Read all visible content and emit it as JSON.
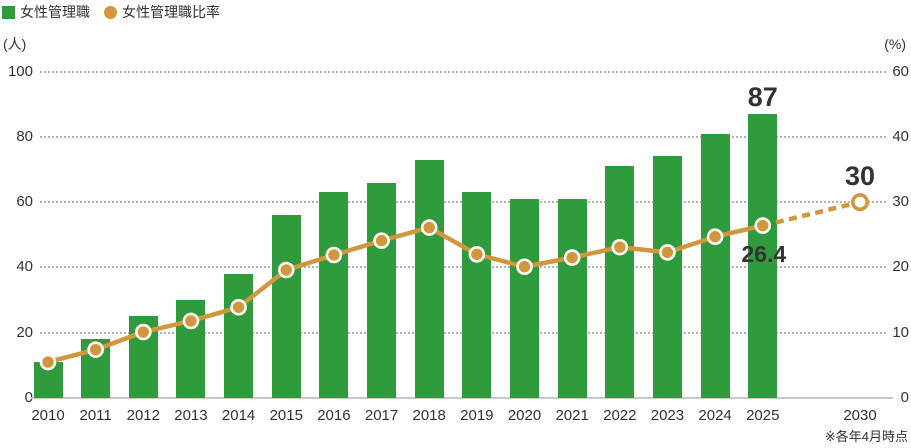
{
  "colors": {
    "bar": "#2f9b3d",
    "line": "#d2973c",
    "grid": "#b3b3b3",
    "axis_line": "#c9c9c9",
    "text": "#333333"
  },
  "legend": {
    "bar_label": "女性管理職",
    "line_label": "女性管理職比率"
  },
  "left_axis": {
    "unit": "(人)",
    "ticks": [
      0,
      20,
      40,
      60,
      80,
      100
    ]
  },
  "right_axis": {
    "unit": "(%)",
    "ticks": [
      0,
      10,
      20,
      30,
      40,
      60
    ]
  },
  "note": "※各年4月時点",
  "chart_data": {
    "type": "combo",
    "categories": [
      "2010",
      "2011",
      "2012",
      "2013",
      "2014",
      "2015",
      "2016",
      "2017",
      "2018",
      "2019",
      "2020",
      "2021",
      "2022",
      "2023",
      "2024",
      "2025",
      "2030"
    ],
    "series": [
      {
        "name": "女性管理職",
        "type": "bar",
        "axis": "left",
        "values": [
          11,
          18,
          25,
          30,
          38,
          56,
          63,
          66,
          73,
          63,
          61,
          61,
          71,
          74,
          81,
          87,
          null
        ]
      },
      {
        "name": "女性管理職比率",
        "type": "line",
        "axis": "right",
        "values": [
          5.5,
          7.4,
          10.1,
          11.8,
          13.9,
          19.6,
          21.9,
          24.1,
          26.1,
          22.0,
          20.1,
          21.5,
          23.1,
          22.3,
          24.7,
          26.4,
          30
        ],
        "dashed_from_category": "2025",
        "open_marker_category": "2030"
      }
    ],
    "annotations": [
      {
        "category": "2025",
        "series": "女性管理職",
        "text": "87"
      },
      {
        "category": "2025",
        "series": "女性管理職比率",
        "text": "26.4"
      },
      {
        "category": "2030",
        "series": "女性管理職比率",
        "text": "30"
      }
    ],
    "left_ylim": [
      0,
      100
    ],
    "grid": true,
    "legend_position": "top-left"
  }
}
